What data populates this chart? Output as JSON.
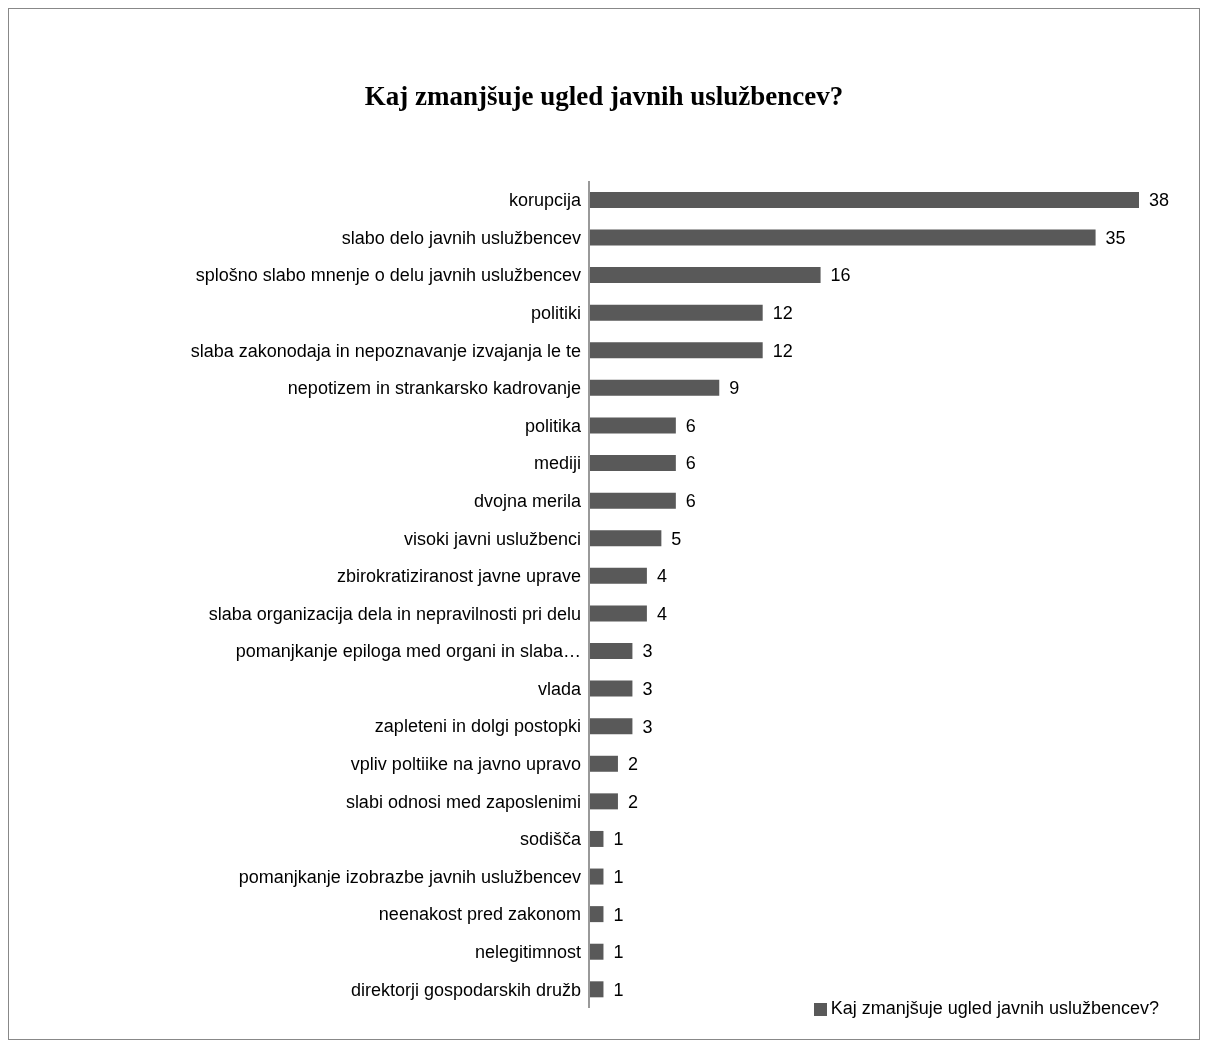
{
  "chart_data": {
    "type": "bar",
    "orientation": "horizontal",
    "title": "Kaj zmanjšuje ugled javnih uslužbencev?",
    "categories": [
      "korupcija",
      "slabo delo javnih uslužbencev",
      "splošno slabo mnenje o delu javnih uslužbencev",
      "politiki",
      "slaba zakonodaja in nepoznavanje izvajanja le te",
      "nepotizem in strankarsko kadrovanje",
      "politika",
      "mediji",
      "dvojna merila",
      "visoki javni uslužbenci",
      "zbirokratiziranost javne uprave",
      "slaba organizacija dela in nepravilnosti pri delu",
      "pomanjkanje epiloga med organi in slaba…",
      "vlada",
      "zapleteni in dolgi postopki",
      "vpliv poltiike na javno upravo",
      "slabi odnosi med zaposlenimi",
      "sodišča",
      "pomanjkanje izobrazbe javnih uslužbencev",
      "neenakost pred zakonom",
      "nelegitimnost",
      "direktorji gospodarskih družb"
    ],
    "series": [
      {
        "name": "Kaj zmanjšuje ugled javnih uslužbencev?",
        "color": "#595959",
        "values": [
          38,
          35,
          16,
          12,
          12,
          9,
          6,
          6,
          6,
          5,
          4,
          4,
          3,
          3,
          3,
          2,
          2,
          1,
          1,
          1,
          1,
          1
        ]
      }
    ],
    "data_labels": true,
    "legend": "bottom right"
  }
}
